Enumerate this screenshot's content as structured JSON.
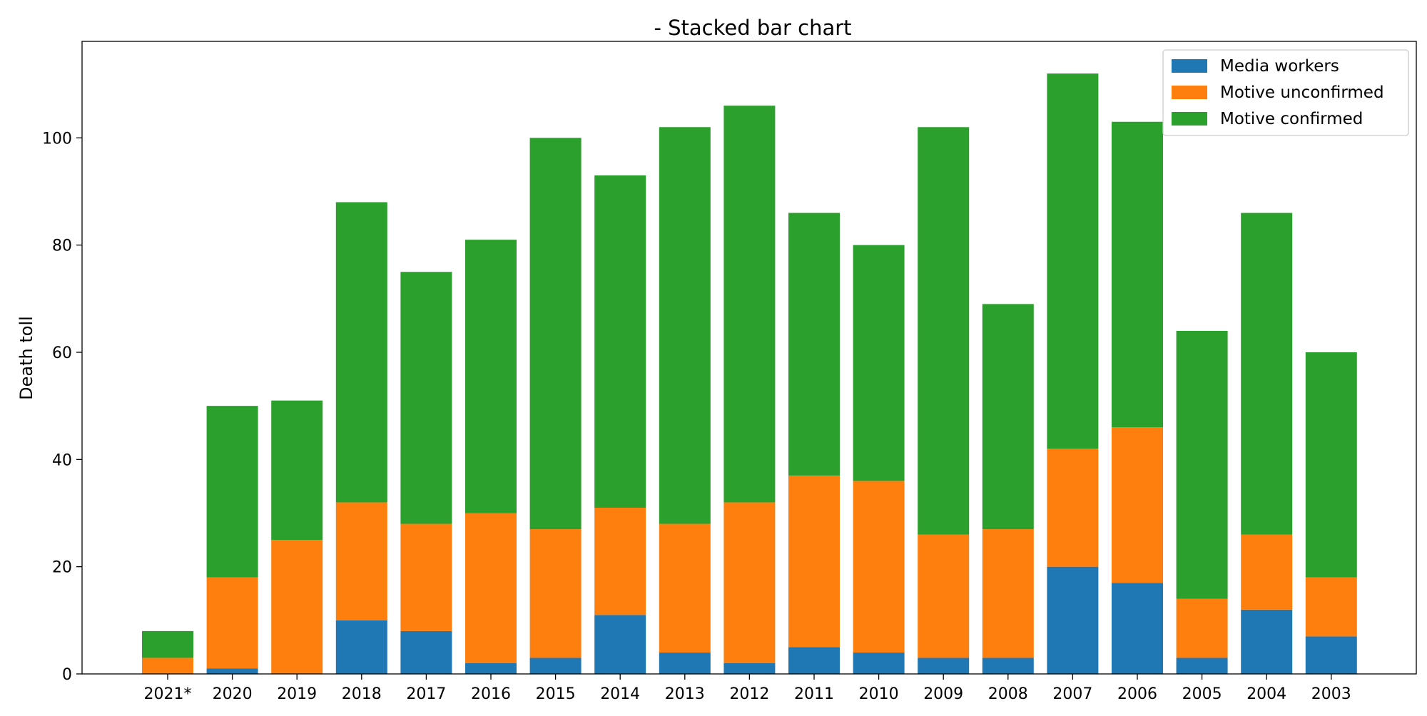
{
  "chart_data": {
    "type": "bar",
    "stacked": true,
    "title": "- Stacked bar chart",
    "xlabel": "",
    "ylabel": "Death toll",
    "ylim": [
      0,
      118
    ],
    "yticks": [
      0,
      20,
      40,
      60,
      80,
      100
    ],
    "grid": false,
    "legend_position": "top-right",
    "categories": [
      "2021*",
      "2020",
      "2019",
      "2018",
      "2017",
      "2016",
      "2015",
      "2014",
      "2013",
      "2012",
      "2011",
      "2010",
      "2009",
      "2008",
      "2007",
      "2006",
      "2005",
      "2004",
      "2003"
    ],
    "series": [
      {
        "name": "Media workers",
        "color": "#1f77b4",
        "values": [
          0,
          1,
          0,
          10,
          8,
          2,
          3,
          11,
          4,
          2,
          5,
          4,
          3,
          3,
          20,
          17,
          3,
          12,
          7
        ]
      },
      {
        "name": "Motive unconfirmed",
        "color": "#ff7f0e",
        "values": [
          3,
          17,
          25,
          22,
          20,
          28,
          24,
          20,
          24,
          30,
          32,
          32,
          23,
          24,
          22,
          29,
          11,
          14,
          11
        ]
      },
      {
        "name": "Motive confirmed",
        "color": "#2ca02c",
        "values": [
          5,
          32,
          26,
          56,
          47,
          51,
          73,
          62,
          74,
          74,
          49,
          44,
          76,
          42,
          70,
          57,
          50,
          60,
          42
        ]
      }
    ]
  }
}
